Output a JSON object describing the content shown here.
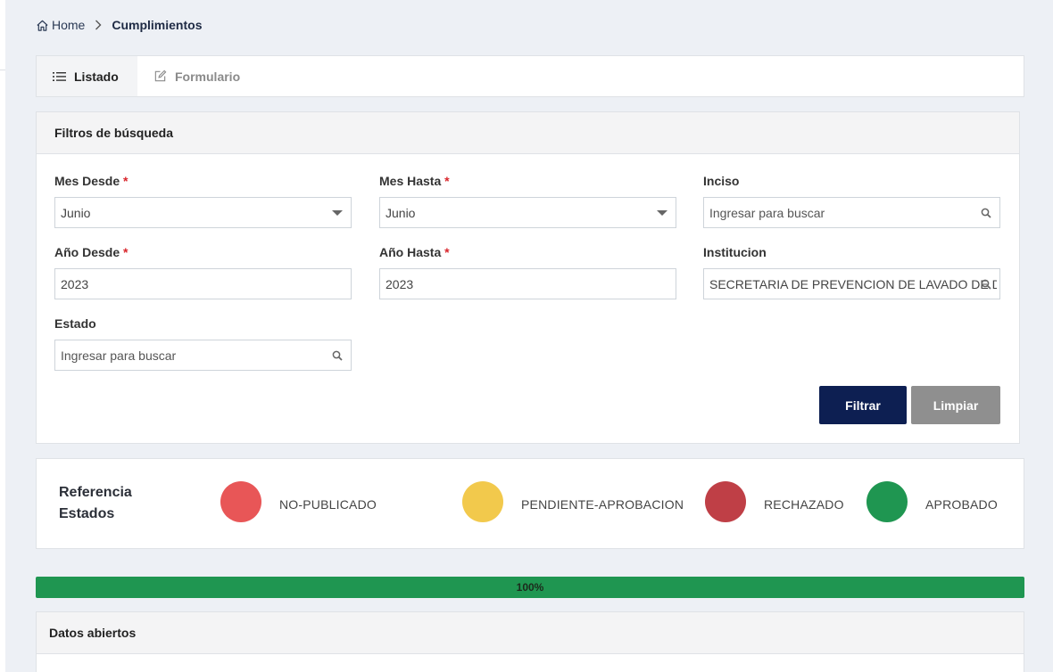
{
  "breadcrumb": {
    "home": "Home",
    "current": "Cumplimientos"
  },
  "tabs": [
    {
      "label": "Listado",
      "icon": "list-icon",
      "active": true
    },
    {
      "label": "Formulario",
      "icon": "edit-icon",
      "active": false
    }
  ],
  "filters": {
    "title": "Filtros de búsqueda",
    "required_mark": "*",
    "mes_desde": {
      "label": "Mes Desde",
      "value": "Junio"
    },
    "mes_hasta": {
      "label": "Mes Hasta",
      "value": "Junio"
    },
    "inciso": {
      "label": "Inciso",
      "placeholder": "Ingresar para buscar"
    },
    "anio_desde": {
      "label": "Año Desde",
      "value": "2023"
    },
    "anio_hasta": {
      "label": "Año Hasta",
      "value": "2023"
    },
    "institucion": {
      "label": "Institucion",
      "value": "SECRETARIA DE PREVENCION DE LAVADO DE DINERO"
    },
    "estado": {
      "label": "Estado",
      "placeholder": "Ingresar para buscar"
    },
    "filtrar_label": "Filtrar",
    "limpiar_label": "Limpiar"
  },
  "referencia": {
    "title_line1": "Referencia",
    "title_line2": "Estados",
    "states": [
      {
        "label": "NO-PUBLICADO",
        "color": "#e85657"
      },
      {
        "label": "PENDIENTE-APROBACION",
        "color": "#f2c94c"
      },
      {
        "label": "RECHAZADO",
        "color": "#bf3f46"
      },
      {
        "label": "APROBADO",
        "color": "#1f9651"
      }
    ]
  },
  "progress": {
    "label": "100%",
    "value": 1.0,
    "color": "#1f9651"
  },
  "datos": {
    "title": "Datos abiertos"
  },
  "colors": {
    "primary": "#0d1f52",
    "secondary": "#8f8f8f",
    "background": "#edf0f5"
  }
}
